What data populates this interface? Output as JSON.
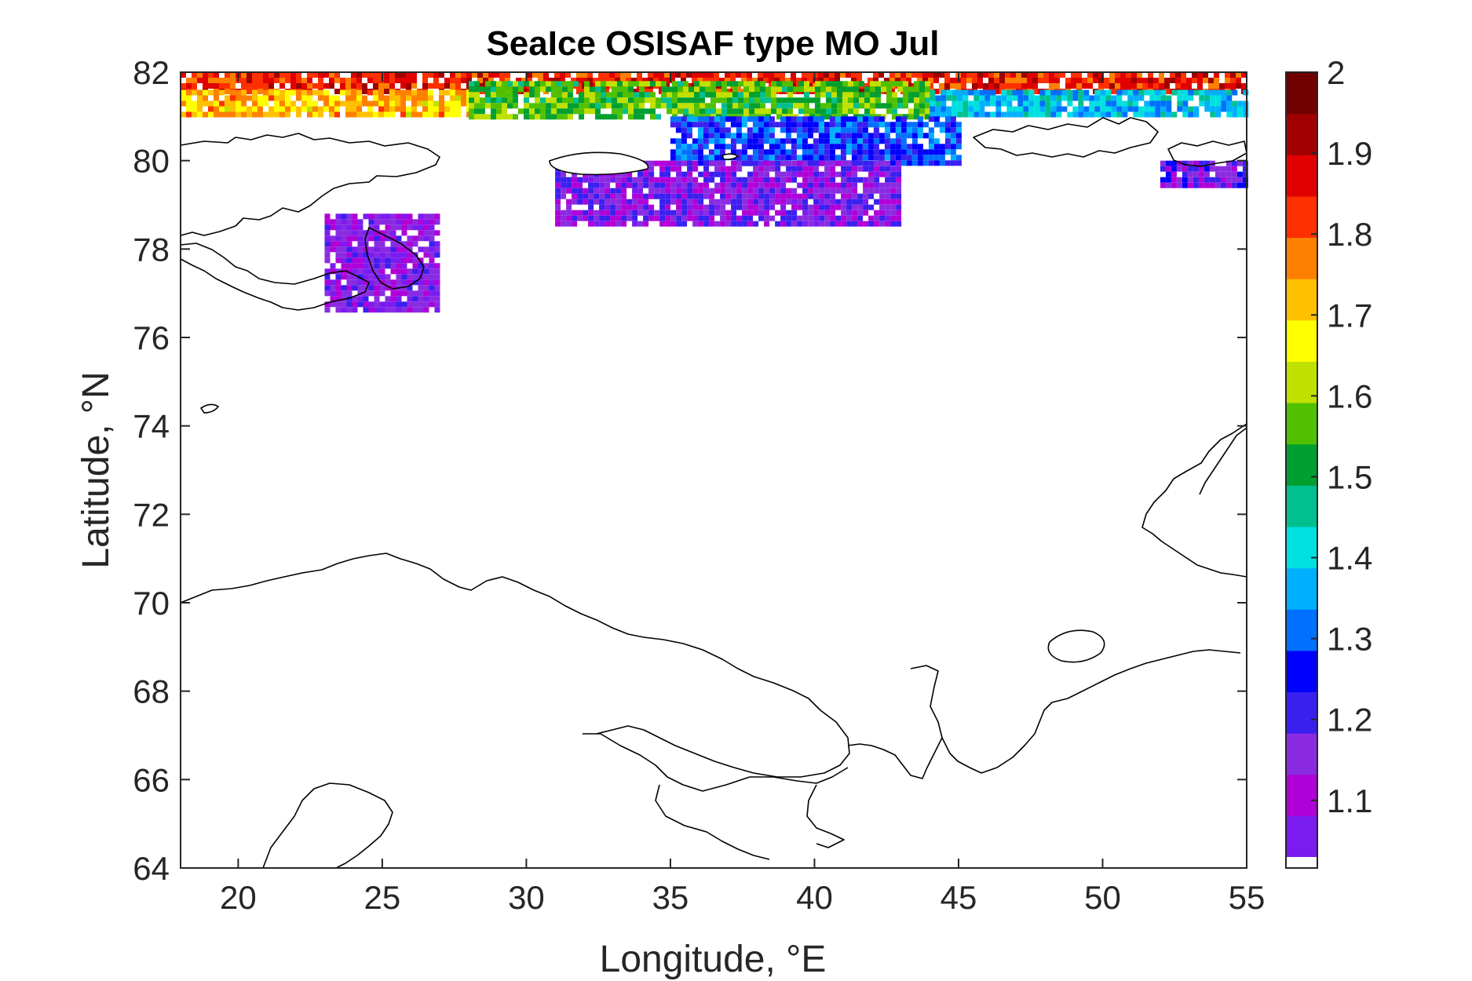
{
  "chart_data": {
    "type": "heatmap",
    "title": "SeaIce OSISAF type MO Jul",
    "xlabel": "Longitude, °E",
    "ylabel": "Latitude, °N",
    "xlim": [
      18,
      55
    ],
    "ylim": [
      64,
      82
    ],
    "xticks": [
      "20",
      "25",
      "30",
      "35",
      "40",
      "45",
      "50",
      "55"
    ],
    "yticks": [
      "64",
      "66",
      "68",
      "70",
      "72",
      "74",
      "76",
      "78",
      "80",
      "82"
    ],
    "grid": false,
    "colorbar": {
      "range": [
        1.03,
        2.0
      ],
      "ticks": [
        "1.1",
        "1.2",
        "1.3",
        "1.4",
        "1.5",
        "1.6",
        "1.7",
        "1.8",
        "1.9",
        "2"
      ],
      "colormap": [
        "#7a1cf0",
        "#b000d8",
        "#8a2be2",
        "#3a1ff0",
        "#0000ff",
        "#0070ff",
        "#00b0ff",
        "#00e0e0",
        "#00c090",
        "#00a030",
        "#50c000",
        "#c0e000",
        "#ffff00",
        "#ffc000",
        "#ff8000",
        "#ff3000",
        "#e00000",
        "#a00000",
        "#700000"
      ]
    },
    "ice_regions": [
      {
        "lon": [
          18,
          55
        ],
        "lat": [
          81.6,
          82.0
        ],
        "value": 1.85
      },
      {
        "lon": [
          18,
          28
        ],
        "lat": [
          81.0,
          81.6
        ],
        "value": 1.72
      },
      {
        "lon": [
          28,
          44
        ],
        "lat": [
          81.0,
          81.8
        ],
        "value": 1.55
      },
      {
        "lon": [
          44,
          55
        ],
        "lat": [
          81.0,
          81.6
        ],
        "value": 1.38
      },
      {
        "lon": [
          35,
          45
        ],
        "lat": [
          80.0,
          81.0
        ],
        "value": 1.28
      },
      {
        "lon": [
          31,
          43
        ],
        "lat": [
          78.6,
          80.0
        ],
        "value": 1.15
      },
      {
        "lon": [
          23,
          27
        ],
        "lat": [
          76.6,
          78.8
        ],
        "value": 1.12
      },
      {
        "lon": [
          52,
          55
        ],
        "lat": [
          79.4,
          80.0
        ],
        "value": 1.18
      }
    ]
  }
}
